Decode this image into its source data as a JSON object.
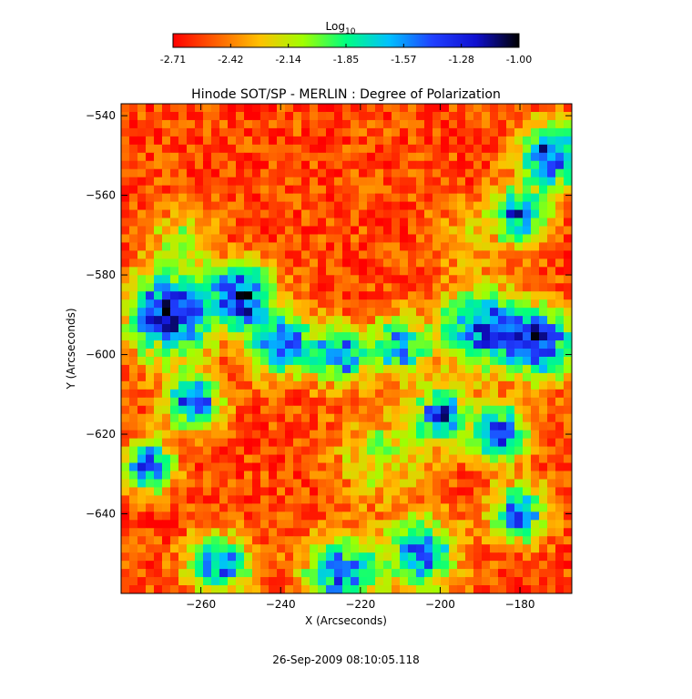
{
  "chart_data": {
    "type": "heatmap",
    "title": "Hinode SOT/SP - MERLIN : Degree of Polarization",
    "xlabel": "X (Arcseconds)",
    "ylabel": "Y (Arcseconds)",
    "xlim": [
      -280,
      -167
    ],
    "ylim": [
      -660,
      -537
    ],
    "x_ticks": [
      -260,
      -240,
      -220,
      -200,
      -180
    ],
    "y_ticks": [
      -540,
      -560,
      -580,
      -600,
      -620,
      -640
    ],
    "colorbar": {
      "title_base": "Log",
      "title_sub": "10",
      "range": [
        -2.71,
        -1.0
      ],
      "tick_labels": [
        "-2.71",
        "-2.42",
        "-2.14",
        "-1.85",
        "-1.57",
        "-1.28",
        "-1.00"
      ],
      "colormap": [
        "#ff0000",
        "#ff6000",
        "#ffc000",
        "#a0ff00",
        "#00ff80",
        "#00c0ff",
        "#2040ff",
        "#1010d0",
        "#000000"
      ]
    },
    "timestamp": "26-Sep-2009 08:10:05.118",
    "regions": [
      {
        "cx": -268,
        "cy": -590,
        "r": 12,
        "level": -1.2
      },
      {
        "cx": -250,
        "cy": -585,
        "r": 9,
        "level": -1.3
      },
      {
        "cx": -240,
        "cy": -597,
        "r": 9,
        "level": -1.4
      },
      {
        "cx": -225,
        "cy": -600,
        "r": 8,
        "level": -1.5
      },
      {
        "cx": -210,
        "cy": -598,
        "r": 8,
        "level": -1.55
      },
      {
        "cx": -262,
        "cy": -612,
        "r": 8,
        "level": -1.45
      },
      {
        "cx": -273,
        "cy": -628,
        "r": 7,
        "level": -1.3
      },
      {
        "cx": -190,
        "cy": -593,
        "r": 11,
        "level": -1.35
      },
      {
        "cx": -175,
        "cy": -597,
        "r": 10,
        "level": -1.25
      },
      {
        "cx": -172,
        "cy": -550,
        "r": 9,
        "level": -1.3
      },
      {
        "cx": -180,
        "cy": -565,
        "r": 8,
        "level": -1.45
      },
      {
        "cx": -200,
        "cy": -615,
        "r": 8,
        "level": -1.5
      },
      {
        "cx": -185,
        "cy": -620,
        "r": 8,
        "level": -1.4
      },
      {
        "cx": -225,
        "cy": -655,
        "r": 10,
        "level": -1.45
      },
      {
        "cx": -205,
        "cy": -650,
        "r": 10,
        "level": -1.5
      },
      {
        "cx": -255,
        "cy": -653,
        "r": 9,
        "level": -1.5
      },
      {
        "cx": -180,
        "cy": -640,
        "r": 8,
        "level": -1.45
      },
      {
        "cx": -215,
        "cy": -625,
        "r": 13,
        "level": -2.1
      },
      {
        "cx": -265,
        "cy": -570,
        "r": 9,
        "level": -2.15
      },
      {
        "cx": -195,
        "cy": -570,
        "r": 9,
        "level": -2.25
      }
    ],
    "background_level": -2.55
  }
}
